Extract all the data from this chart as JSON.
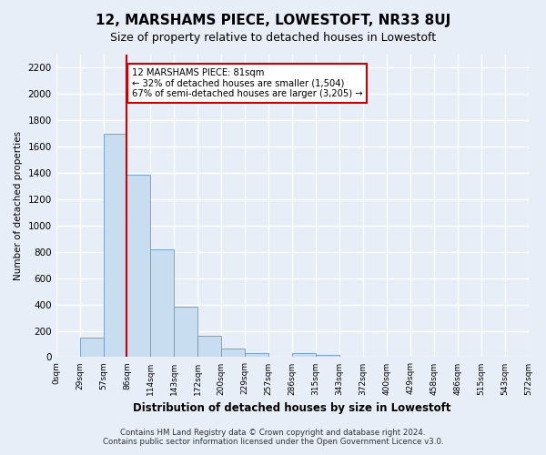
{
  "title": "12, MARSHAMS PIECE, LOWESTOFT, NR33 8UJ",
  "subtitle": "Size of property relative to detached houses in Lowestoft",
  "xlabel": "Distribution of detached houses by size in Lowestoft",
  "ylabel": "Number of detached properties",
  "bar_color": "#c8ddf0",
  "bar_edge_color": "#6699cc",
  "background_color": "#e8eef8",
  "grid_color": "#ffffff",
  "bin_labels": [
    "0sqm",
    "29sqm",
    "57sqm",
    "86sqm",
    "114sqm",
    "143sqm",
    "172sqm",
    "200sqm",
    "229sqm",
    "257sqm",
    "286sqm",
    "315sqm",
    "343sqm",
    "372sqm",
    "400sqm",
    "429sqm",
    "458sqm",
    "486sqm",
    "515sqm",
    "543sqm",
    "572sqm"
  ],
  "bar_values": [
    0,
    150,
    1700,
    1390,
    820,
    385,
    160,
    65,
    28,
    0,
    28,
    20,
    0,
    0,
    0,
    0,
    0,
    0,
    0,
    0
  ],
  "ylim": [
    0,
    2300
  ],
  "yticks": [
    0,
    200,
    400,
    600,
    800,
    1000,
    1200,
    1400,
    1600,
    1800,
    2000,
    2200
  ],
  "vline_x": 3,
  "vline_color": "#cc0000",
  "annotation_title": "12 MARSHAMS PIECE: 81sqm",
  "annotation_line1": "← 32% of detached houses are smaller (1,504)",
  "annotation_line2": "67% of semi-detached houses are larger (3,205) →",
  "annotation_box_color": "#ffffff",
  "annotation_box_edge": "#cc0000",
  "footer_line1": "Contains HM Land Registry data © Crown copyright and database right 2024.",
  "footer_line2": "Contains public sector information licensed under the Open Government Licence v3.0."
}
